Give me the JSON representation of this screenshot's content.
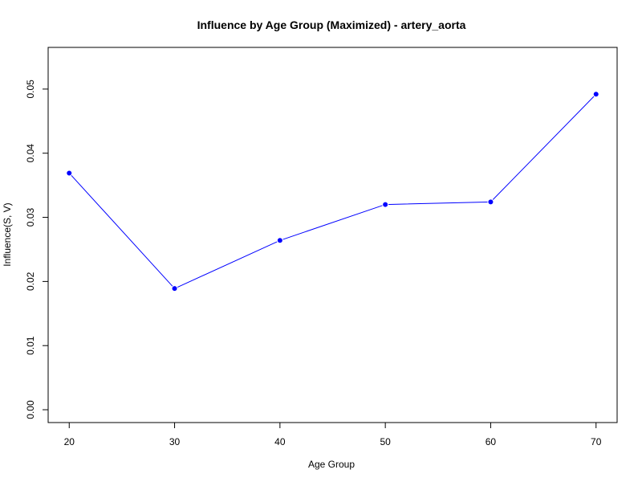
{
  "chart_data": {
    "type": "line",
    "title": "Influence by Age Group (Maximized) - artery_aorta",
    "xlabel": "Age Group",
    "ylabel": "Influence(S, V)",
    "x": [
      20,
      30,
      40,
      50,
      60,
      70
    ],
    "series": [
      {
        "values": [
          0.0369,
          0.0189,
          0.0264,
          0.032,
          0.0324,
          0.0492
        ]
      }
    ],
    "xticks": [
      "20",
      "30",
      "40",
      "50",
      "60",
      "70"
    ],
    "yticks": [
      "0.00",
      "0.01",
      "0.02",
      "0.03",
      "0.04",
      "0.05"
    ],
    "xlim": [
      18.0,
      72.0
    ],
    "ylim": [
      -0.002,
      0.0565
    ],
    "grid": false,
    "colors": {
      "line": "#0000ff",
      "points": "#0000ff"
    }
  }
}
